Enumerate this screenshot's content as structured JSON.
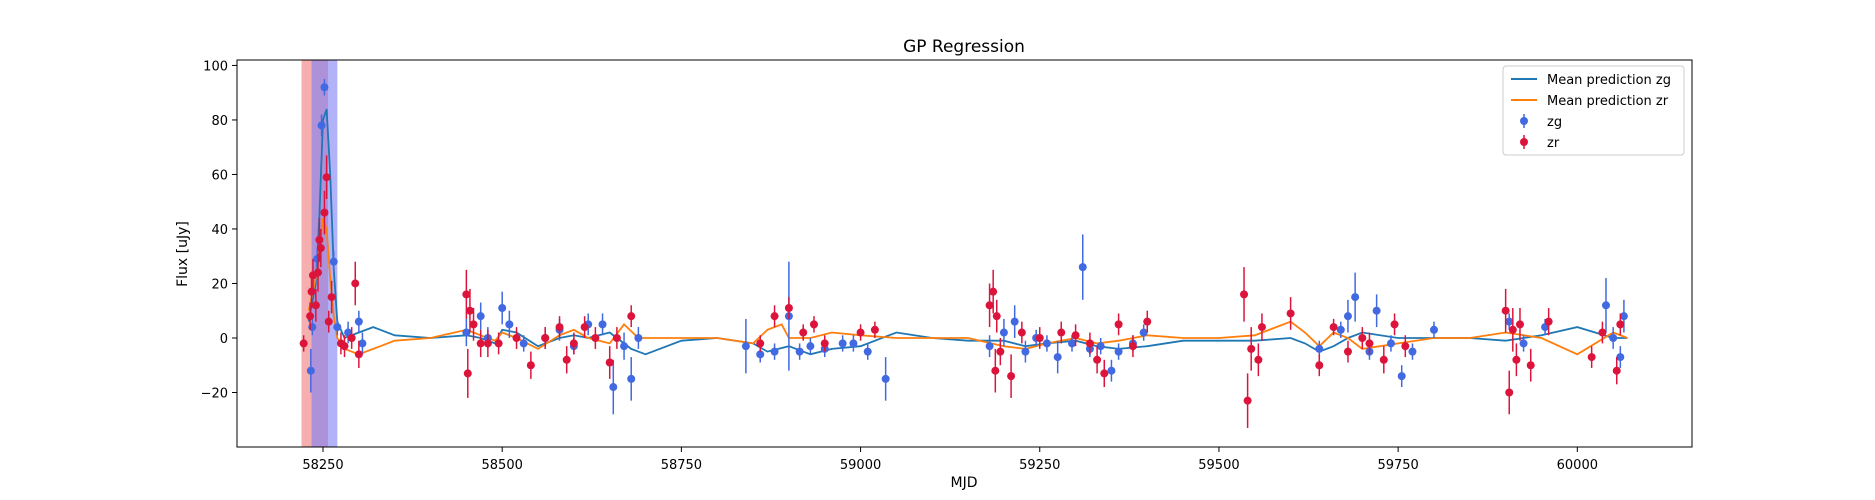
{
  "chart_data": {
    "type": "scatter",
    "title": "GP Regression",
    "xlabel": "MJD",
    "ylabel": "Flux [uJy]",
    "xlim": [
      58130,
      60160
    ],
    "ylim": [
      -40,
      102
    ],
    "xticks": [
      58250,
      58500,
      58750,
      59000,
      59250,
      59500,
      59750,
      60000
    ],
    "yticks": [
      -20,
      0,
      20,
      40,
      60,
      80,
      100
    ],
    "grid": false,
    "legend": {
      "placement": "top-right",
      "entries": [
        "Mean prediction zg",
        "Mean prediction zr",
        "zg",
        "zr"
      ]
    },
    "colors": {
      "zg": "#4169e1",
      "zr": "#dc143c",
      "mean_zg": "#1f77b4",
      "mean_zr": "#ff7f0e",
      "span_red": "#f08080",
      "span_blue": "#8a7ff0"
    },
    "shaded_regions": [
      {
        "x0": 58220,
        "x1": 58257,
        "color": "#f4a0a0",
        "opacity": 0.85
      },
      {
        "x0": 58234,
        "x1": 58270,
        "color": "#7f7ff5",
        "opacity": 0.6
      }
    ],
    "series": [
      {
        "name": "Mean prediction zg",
        "kind": "line",
        "x": [
          58230,
          58240,
          58245,
          58250,
          58255,
          58260,
          58265,
          58270,
          58280,
          58300,
          58320,
          58350,
          58400,
          58450,
          58470,
          58490,
          58500,
          58520,
          58550,
          58580,
          58600,
          58620,
          58650,
          58680,
          58700,
          58750,
          58800,
          58850,
          58870,
          58900,
          58930,
          58960,
          59000,
          59050,
          59100,
          59150,
          59200,
          59230,
          59260,
          59300,
          59330,
          59360,
          59400,
          59450,
          59500,
          59550,
          59600,
          59620,
          59640,
          59660,
          59680,
          59700,
          59750,
          59800,
          59850,
          59900,
          59950,
          60000,
          60050,
          60070
        ],
        "y": [
          6,
          20,
          45,
          80,
          84,
          60,
          25,
          6,
          0,
          2,
          4,
          1,
          0,
          1,
          0,
          -2,
          3,
          2,
          -3,
          0,
          1,
          0,
          2,
          -4,
          -6,
          -1,
          0,
          -2,
          -5,
          -3,
          -6,
          -4,
          -3,
          2,
          0,
          -1,
          -1,
          -3,
          -2,
          -1,
          -3,
          -4,
          -3,
          -1,
          -1,
          -1,
          0,
          -2,
          -5,
          -3,
          0,
          2,
          0,
          0,
          0,
          -1,
          1,
          4,
          0,
          0
        ]
      },
      {
        "name": "Mean prediction zr",
        "kind": "line",
        "x": [
          58230,
          58240,
          58245,
          58250,
          58255,
          58260,
          58265,
          58270,
          58280,
          58300,
          58320,
          58350,
          58400,
          58450,
          58470,
          58490,
          58500,
          58520,
          58550,
          58580,
          58600,
          58620,
          58650,
          58670,
          58690,
          58720,
          58750,
          58800,
          58850,
          58870,
          58890,
          58900,
          58930,
          58960,
          59000,
          59050,
          59100,
          59150,
          59200,
          59230,
          59260,
          59300,
          59330,
          59360,
          59400,
          59450,
          59500,
          59550,
          59580,
          59600,
          59620,
          59640,
          59660,
          59680,
          59700,
          59750,
          59800,
          59850,
          59900,
          59950,
          60000,
          60050,
          60070
        ],
        "y": [
          10,
          22,
          32,
          44,
          40,
          22,
          8,
          0,
          -4,
          -6,
          -4,
          -1,
          0,
          3,
          1,
          -1,
          2,
          0,
          -4,
          1,
          3,
          0,
          -2,
          5,
          0,
          0,
          0,
          0,
          -2,
          3,
          5,
          0,
          0,
          2,
          1,
          0,
          0,
          0,
          -3,
          -4,
          -2,
          0,
          -2,
          -1,
          1,
          0,
          0,
          1,
          4,
          6,
          2,
          -3,
          2,
          0,
          -4,
          -2,
          0,
          0,
          2,
          0,
          -6,
          2,
          0
        ]
      },
      {
        "name": "zg",
        "kind": "errorbar",
        "points": [
          [
            58233,
            -12,
            8
          ],
          [
            58235,
            4,
            3
          ],
          [
            58242,
            29,
            4
          ],
          [
            58248,
            78,
            4
          ],
          [
            58252,
            92,
            3
          ],
          [
            58265,
            28,
            4
          ],
          [
            58270,
            4,
            3
          ],
          [
            58285,
            2,
            4
          ],
          [
            58300,
            6,
            4
          ],
          [
            58305,
            -2,
            4
          ],
          [
            58450,
            2,
            5
          ],
          [
            58470,
            8,
            5
          ],
          [
            58480,
            0,
            4
          ],
          [
            58500,
            11,
            6
          ],
          [
            58510,
            5,
            5
          ],
          [
            58530,
            -2,
            3
          ],
          [
            58560,
            0,
            4
          ],
          [
            58580,
            3,
            4
          ],
          [
            58600,
            -3,
            3
          ],
          [
            58620,
            5,
            4
          ],
          [
            58640,
            5,
            4
          ],
          [
            58655,
            -18,
            10
          ],
          [
            58670,
            -3,
            5
          ],
          [
            58680,
            -15,
            8
          ],
          [
            58690,
            0,
            4
          ],
          [
            58840,
            -3,
            10
          ],
          [
            58860,
            -6,
            3
          ],
          [
            58880,
            -5,
            3
          ],
          [
            58900,
            8,
            20
          ],
          [
            58915,
            -5,
            3
          ],
          [
            58930,
            -3,
            3
          ],
          [
            58950,
            -4,
            3
          ],
          [
            58975,
            -2,
            3
          ],
          [
            58990,
            -2,
            3
          ],
          [
            59010,
            -5,
            3
          ],
          [
            59035,
            -15,
            8
          ],
          [
            59180,
            -3,
            4
          ],
          [
            59200,
            2,
            5
          ],
          [
            59215,
            6,
            6
          ],
          [
            59230,
            -5,
            4
          ],
          [
            59245,
            0,
            3
          ],
          [
            59260,
            -2,
            3
          ],
          [
            59275,
            -7,
            6
          ],
          [
            59295,
            -2,
            3
          ],
          [
            59310,
            26,
            12
          ],
          [
            59320,
            -4,
            3
          ],
          [
            59335,
            -3,
            3
          ],
          [
            59350,
            -12,
            4
          ],
          [
            59360,
            -5,
            3
          ],
          [
            59380,
            -2,
            3
          ],
          [
            59395,
            2,
            3
          ],
          [
            59640,
            -4,
            3
          ],
          [
            59670,
            3,
            3
          ],
          [
            59680,
            8,
            6
          ],
          [
            59690,
            15,
            9
          ],
          [
            59710,
            -5,
            3
          ],
          [
            59720,
            10,
            6
          ],
          [
            59740,
            -2,
            3
          ],
          [
            59755,
            -14,
            4
          ],
          [
            59770,
            -5,
            3
          ],
          [
            59800,
            3,
            3
          ],
          [
            59905,
            6,
            3
          ],
          [
            59925,
            -2,
            3
          ],
          [
            59955,
            4,
            3
          ],
          [
            60040,
            12,
            10
          ],
          [
            60050,
            0,
            4
          ],
          [
            60060,
            -7,
            4
          ],
          [
            60065,
            8,
            6
          ]
        ]
      },
      {
        "name": "zr",
        "kind": "errorbar",
        "points": [
          [
            58223,
            -2,
            3
          ],
          [
            58232,
            8,
            5
          ],
          [
            58234,
            17,
            6
          ],
          [
            58236,
            23,
            6
          ],
          [
            58240,
            12,
            6
          ],
          [
            58243,
            24,
            7
          ],
          [
            58245,
            36,
            8
          ],
          [
            58247,
            33,
            7
          ],
          [
            58252,
            46,
            8
          ],
          [
            58255,
            59,
            8
          ],
          [
            58258,
            6,
            4
          ],
          [
            58262,
            15,
            6
          ],
          [
            58275,
            -2,
            4
          ],
          [
            58280,
            -3,
            4
          ],
          [
            58290,
            0,
            4
          ],
          [
            58295,
            20,
            8
          ],
          [
            58300,
            -6,
            5
          ],
          [
            58450,
            16,
            9
          ],
          [
            58452,
            -13,
            9
          ],
          [
            58455,
            10,
            8
          ],
          [
            58460,
            5,
            6
          ],
          [
            58470,
            -2,
            5
          ],
          [
            58480,
            -2,
            5
          ],
          [
            58495,
            -2,
            4
          ],
          [
            58520,
            0,
            4
          ],
          [
            58540,
            -10,
            5
          ],
          [
            58560,
            0,
            4
          ],
          [
            58580,
            4,
            4
          ],
          [
            58590,
            -8,
            5
          ],
          [
            58600,
            -2,
            4
          ],
          [
            58615,
            4,
            4
          ],
          [
            58630,
            0,
            4
          ],
          [
            58650,
            -9,
            6
          ],
          [
            58660,
            0,
            4
          ],
          [
            58680,
            8,
            4
          ],
          [
            58860,
            -2,
            3
          ],
          [
            58880,
            8,
            4
          ],
          [
            58900,
            11,
            4
          ],
          [
            58920,
            2,
            3
          ],
          [
            58935,
            5,
            3
          ],
          [
            58950,
            -2,
            3
          ],
          [
            59000,
            2,
            3
          ],
          [
            59020,
            3,
            3
          ],
          [
            59180,
            12,
            8
          ],
          [
            59185,
            17,
            8
          ],
          [
            59188,
            -12,
            8
          ],
          [
            59190,
            8,
            6
          ],
          [
            59195,
            -5,
            5
          ],
          [
            59210,
            -14,
            8
          ],
          [
            59225,
            2,
            4
          ],
          [
            59250,
            0,
            4
          ],
          [
            59280,
            2,
            4
          ],
          [
            59300,
            1,
            4
          ],
          [
            59320,
            -2,
            4
          ],
          [
            59330,
            -8,
            5
          ],
          [
            59340,
            -13,
            5
          ],
          [
            59360,
            5,
            4
          ],
          [
            59380,
            -3,
            4
          ],
          [
            59400,
            6,
            4
          ],
          [
            59535,
            16,
            10
          ],
          [
            59540,
            -23,
            10
          ],
          [
            59545,
            -4,
            8
          ],
          [
            59555,
            -8,
            6
          ],
          [
            59560,
            4,
            5
          ],
          [
            59600,
            9,
            6
          ],
          [
            59640,
            -10,
            4
          ],
          [
            59660,
            4,
            3
          ],
          [
            59680,
            -5,
            4
          ],
          [
            59700,
            0,
            4
          ],
          [
            59710,
            -2,
            4
          ],
          [
            59730,
            -8,
            5
          ],
          [
            59745,
            5,
            4
          ],
          [
            59760,
            -3,
            4
          ],
          [
            59900,
            10,
            8
          ],
          [
            59905,
            -20,
            8
          ],
          [
            59910,
            3,
            8
          ],
          [
            59915,
            -8,
            6
          ],
          [
            59920,
            5,
            6
          ],
          [
            59935,
            -10,
            6
          ],
          [
            59960,
            6,
            5
          ],
          [
            60020,
            -7,
            4
          ],
          [
            60035,
            2,
            4
          ],
          [
            60055,
            -12,
            5
          ],
          [
            60060,
            5,
            4
          ]
        ]
      }
    ]
  }
}
